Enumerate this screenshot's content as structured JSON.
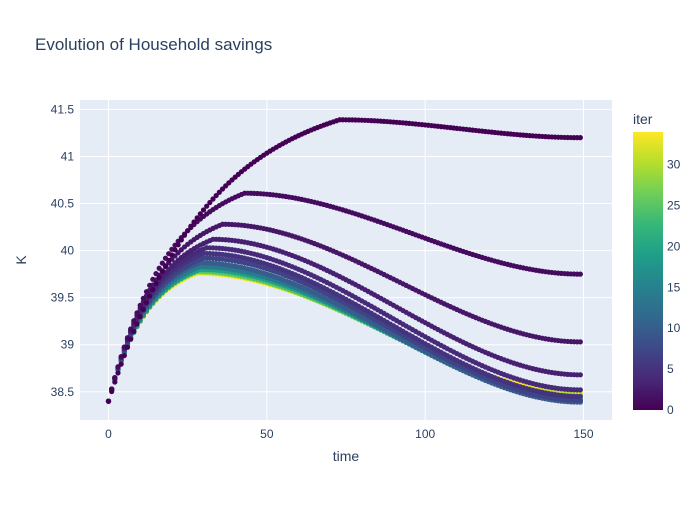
{
  "chart_data": {
    "type": "scatter",
    "title": "Evolution of Household savings",
    "xlabel": "time",
    "ylabel": "K",
    "xlim": [
      -9,
      159
    ],
    "ylim": [
      38.2,
      41.6
    ],
    "x_ticks": [
      0,
      50,
      100,
      150
    ],
    "x_tick_labels": [
      "0",
      "50",
      "100",
      "150"
    ],
    "y_ticks": [
      38.5,
      39,
      39.5,
      40,
      40.5,
      41,
      41.5
    ],
    "y_tick_labels": [
      "38.5",
      "39",
      "39.5",
      "40",
      "40.5",
      "41",
      "41.5"
    ],
    "x_start": 0,
    "x_end": 149,
    "x_step": 1,
    "colorbar": {
      "title": "iter",
      "min": 0,
      "max": 34,
      "ticks": [
        0,
        5,
        10,
        15,
        20,
        25,
        30
      ],
      "tick_labels": [
        "0",
        "5",
        "10",
        "15",
        "20",
        "25",
        "30"
      ],
      "colorscale": [
        "#440154",
        "#482878",
        "#3e4989",
        "#31688e",
        "#26828e",
        "#1f9e89",
        "#35b779",
        "#6ece58",
        "#b5de2b",
        "#fde725"
      ]
    },
    "grid": true,
    "background_color": "#e5ecf6",
    "series": [
      {
        "iter": 0,
        "start": 38.4,
        "peak": 41.39,
        "peak_t": 73,
        "end": 41.2
      },
      {
        "iter": 1,
        "start": 38.4,
        "peak": 40.61,
        "peak_t": 43,
        "end": 39.75
      },
      {
        "iter": 2,
        "start": 38.4,
        "peak": 40.28,
        "peak_t": 36,
        "end": 39.03
      },
      {
        "iter": 3,
        "start": 38.4,
        "peak": 40.12,
        "peak_t": 33,
        "end": 38.68
      },
      {
        "iter": 4,
        "start": 38.4,
        "peak": 40.03,
        "peak_t": 31,
        "end": 38.52
      },
      {
        "iter": 5,
        "start": 38.4,
        "peak": 39.97,
        "peak_t": 30,
        "end": 38.45
      },
      {
        "iter": 7,
        "start": 38.4,
        "peak": 39.92,
        "peak_t": 30,
        "end": 38.41
      },
      {
        "iter": 10,
        "start": 38.4,
        "peak": 39.87,
        "peak_t": 29,
        "end": 38.39
      },
      {
        "iter": 14,
        "start": 38.4,
        "peak": 39.83,
        "peak_t": 29,
        "end": 38.4
      },
      {
        "iter": 19,
        "start": 38.4,
        "peak": 39.8,
        "peak_t": 29,
        "end": 38.42
      },
      {
        "iter": 25,
        "start": 38.4,
        "peak": 39.78,
        "peak_t": 28,
        "end": 38.45
      },
      {
        "iter": 30,
        "start": 38.4,
        "peak": 39.77,
        "peak_t": 28,
        "end": 38.47
      },
      {
        "iter": 34,
        "start": 38.4,
        "peak": 39.76,
        "peak_t": 28,
        "end": 38.49
      }
    ]
  }
}
